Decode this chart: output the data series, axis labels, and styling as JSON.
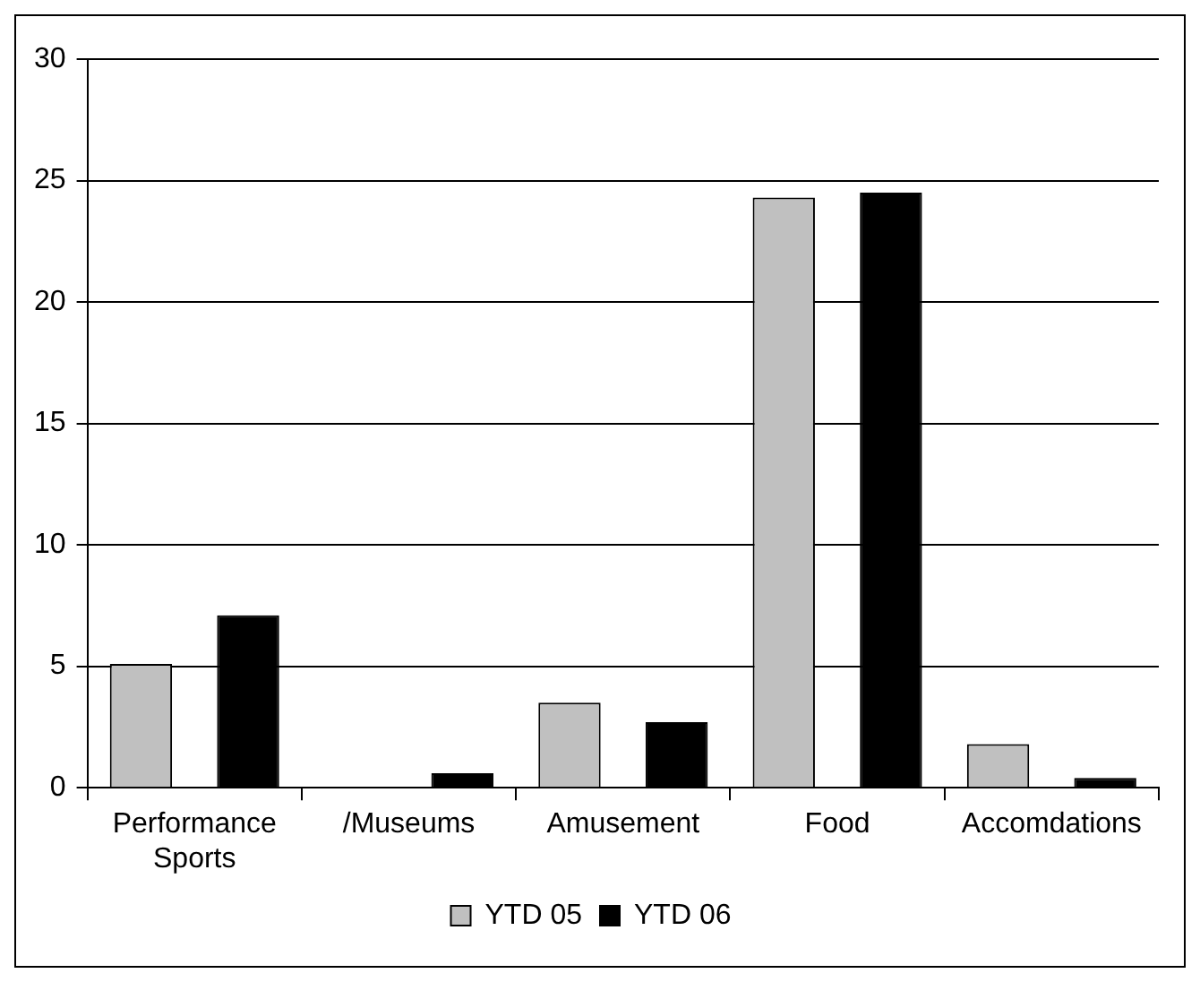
{
  "chart_data": {
    "type": "bar",
    "categories": [
      "Performance Sports",
      "/Museums",
      "Amusement",
      "Food",
      "Accomdations"
    ],
    "series": [
      {
        "name": "YTD 05",
        "color": "#c0c0c0",
        "values": [
          5.1,
          0,
          3.5,
          24.3,
          1.8
        ]
      },
      {
        "name": "YTD 06",
        "color": "#000000",
        "values": [
          7.1,
          0.6,
          2.7,
          24.5,
          0.4
        ]
      }
    ],
    "ylim": [
      0,
      30
    ],
    "yticks": [
      0,
      5,
      10,
      15,
      20,
      25,
      30
    ],
    "grid": "y",
    "legend": "bottom"
  }
}
